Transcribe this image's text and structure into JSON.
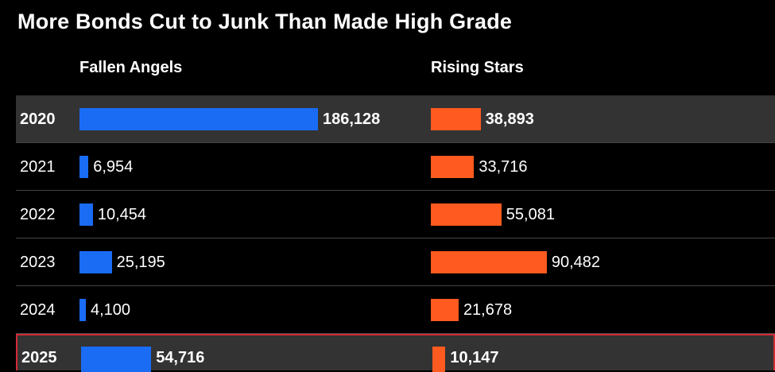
{
  "chart_data": {
    "type": "bar",
    "title": "More Bonds Cut to Junk Than Made High Grade",
    "categories": [
      "2020",
      "2021",
      "2022",
      "2023",
      "2024",
      "2025"
    ],
    "series": [
      {
        "name": "Fallen Angels",
        "color": "#1a6cf5",
        "values": [
          186128,
          6954,
          10454,
          25195,
          4100,
          54716
        ],
        "labels": [
          "186,128",
          "6,954",
          "10,454",
          "25,195",
          "4,100",
          "54,716"
        ]
      },
      {
        "name": "Rising Stars",
        "color": "#ff5a1f",
        "values": [
          38893,
          33716,
          55081,
          90482,
          21678,
          10147
        ],
        "labels": [
          "38,893",
          "33,716",
          "55,081",
          "90,482",
          "21,678",
          "10,147"
        ]
      }
    ],
    "highlighted_rows": [
      "2020",
      "2025"
    ],
    "outlined_row": "2025",
    "outline_color": "#d42a36",
    "highlight_color": "#333333"
  }
}
